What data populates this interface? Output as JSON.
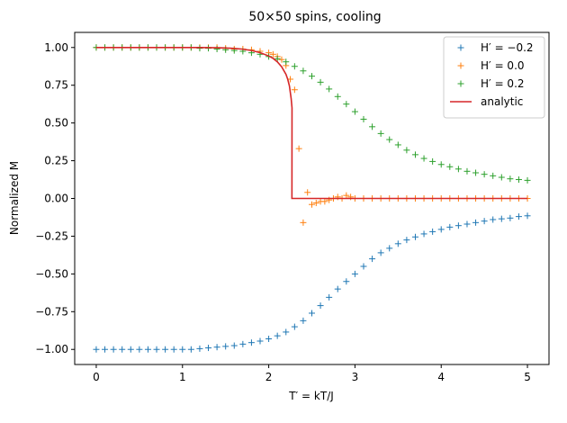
{
  "chart_data": {
    "type": "scatter",
    "title": "50×50 spins, cooling",
    "xlabel": "T′ = kT/J",
    "ylabel": "Normalized M",
    "xlim": [
      -0.25,
      5.25
    ],
    "ylim": [
      -1.1,
      1.1
    ],
    "xticks": [
      0,
      1,
      2,
      3,
      4,
      5
    ],
    "xtick_labels": [
      "0",
      "1",
      "2",
      "3",
      "4",
      "5"
    ],
    "yticks": [
      -1.0,
      -0.75,
      -0.5,
      -0.25,
      0.0,
      0.25,
      0.5,
      0.75,
      1.0
    ],
    "ytick_labels": [
      "−1.00",
      "−0.75",
      "−0.50",
      "−0.25",
      "0.00",
      "0.25",
      "0.50",
      "0.75",
      "1.00"
    ],
    "grid": false,
    "legend_position": "top-right",
    "series": [
      {
        "name": "H′ = −0.2",
        "color": "#1f77b4",
        "marker": "+",
        "x": [
          0.0,
          0.1,
          0.2,
          0.3,
          0.4,
          0.5,
          0.6,
          0.7,
          0.8,
          0.9,
          1.0,
          1.1,
          1.2,
          1.3,
          1.4,
          1.5,
          1.6,
          1.7,
          1.8,
          1.9,
          2.0,
          2.1,
          2.2,
          2.3,
          2.4,
          2.5,
          2.6,
          2.7,
          2.8,
          2.9,
          3.0,
          3.1,
          3.2,
          3.3,
          3.4,
          3.5,
          3.6,
          3.7,
          3.8,
          3.9,
          4.0,
          4.1,
          4.2,
          4.3,
          4.4,
          4.5,
          4.6,
          4.7,
          4.8,
          4.9,
          5.0
        ],
        "values": [
          -1.0,
          -1.0,
          -1.0,
          -1.0,
          -1.0,
          -1.0,
          -1.0,
          -1.0,
          -1.0,
          -1.0,
          -1.0,
          -1.0,
          -0.995,
          -0.99,
          -0.985,
          -0.98,
          -0.975,
          -0.965,
          -0.955,
          -0.945,
          -0.93,
          -0.91,
          -0.885,
          -0.85,
          -0.81,
          -0.76,
          -0.71,
          -0.655,
          -0.6,
          -0.55,
          -0.5,
          -0.45,
          -0.4,
          -0.36,
          -0.33,
          -0.3,
          -0.275,
          -0.255,
          -0.235,
          -0.22,
          -0.205,
          -0.19,
          -0.18,
          -0.17,
          -0.16,
          -0.15,
          -0.14,
          -0.135,
          -0.13,
          -0.12,
          -0.115
        ]
      },
      {
        "name": "H′ = 0.0",
        "color": "#ff7f0e",
        "marker": "+",
        "x": [
          0.0,
          0.1,
          0.2,
          0.3,
          0.4,
          0.5,
          0.6,
          0.7,
          0.8,
          0.9,
          1.0,
          1.1,
          1.2,
          1.3,
          1.4,
          1.5,
          1.6,
          1.7,
          1.8,
          1.9,
          2.0,
          2.05,
          2.1,
          2.15,
          2.2,
          2.25,
          2.3,
          2.35,
          2.4,
          2.45,
          2.5,
          2.55,
          2.6,
          2.65,
          2.7,
          2.75,
          2.8,
          2.85,
          2.9,
          2.95,
          3.0,
          3.1,
          3.2,
          3.3,
          3.4,
          3.5,
          3.6,
          3.7,
          3.8,
          3.9,
          4.0,
          4.1,
          4.2,
          4.3,
          4.4,
          4.5,
          4.6,
          4.7,
          4.8,
          4.9,
          5.0
        ],
        "values": [
          1.0,
          1.0,
          1.0,
          1.0,
          1.0,
          1.0,
          1.0,
          1.0,
          1.0,
          1.0,
          1.0,
          1.0,
          1.0,
          1.0,
          1.0,
          0.995,
          0.99,
          0.99,
          0.985,
          0.975,
          0.965,
          0.955,
          0.94,
          0.92,
          0.88,
          0.79,
          0.72,
          0.33,
          -0.16,
          0.04,
          -0.04,
          -0.03,
          -0.02,
          -0.02,
          -0.01,
          0.0,
          0.01,
          0.0,
          0.02,
          0.01,
          0.0,
          0.0,
          0.0,
          0.0,
          0.0,
          0.0,
          0.0,
          0.0,
          0.0,
          0.0,
          0.0,
          0.0,
          0.0,
          0.0,
          0.0,
          0.0,
          0.0,
          0.0,
          0.0,
          0.0,
          0.0
        ]
      },
      {
        "name": "H′ = 0.2",
        "color": "#2ca02c",
        "marker": "+",
        "x": [
          0.0,
          0.1,
          0.2,
          0.3,
          0.4,
          0.5,
          0.6,
          0.7,
          0.8,
          0.9,
          1.0,
          1.1,
          1.2,
          1.3,
          1.4,
          1.5,
          1.6,
          1.7,
          1.8,
          1.9,
          2.0,
          2.1,
          2.2,
          2.3,
          2.4,
          2.5,
          2.6,
          2.7,
          2.8,
          2.9,
          3.0,
          3.1,
          3.2,
          3.3,
          3.4,
          3.5,
          3.6,
          3.7,
          3.8,
          3.9,
          4.0,
          4.1,
          4.2,
          4.3,
          4.4,
          4.5,
          4.6,
          4.7,
          4.8,
          4.9,
          5.0
        ],
        "values": [
          1.0,
          1.0,
          1.0,
          1.0,
          1.0,
          1.0,
          1.0,
          1.0,
          1.0,
          1.0,
          1.0,
          1.0,
          0.995,
          0.995,
          0.99,
          0.985,
          0.98,
          0.975,
          0.965,
          0.955,
          0.94,
          0.925,
          0.905,
          0.875,
          0.845,
          0.81,
          0.77,
          0.725,
          0.675,
          0.625,
          0.575,
          0.525,
          0.475,
          0.43,
          0.39,
          0.355,
          0.32,
          0.29,
          0.265,
          0.245,
          0.225,
          0.21,
          0.195,
          0.18,
          0.17,
          0.16,
          0.15,
          0.14,
          0.13,
          0.125,
          0.12
        ]
      }
    ],
    "analytic": {
      "name": "analytic",
      "color": "#d62728",
      "type": "line",
      "x": [
        0.0,
        0.2,
        0.4,
        0.6,
        0.8,
        1.0,
        1.2,
        1.4,
        1.5,
        1.6,
        1.7,
        1.8,
        1.9,
        2.0,
        2.05,
        2.1,
        2.15,
        2.2,
        2.22,
        2.24,
        2.26,
        2.27,
        2.269,
        5.0
      ],
      "values": [
        1.0,
        1.0,
        1.0,
        1.0,
        1.0,
        1.0,
        0.9995,
        0.9985,
        0.997,
        0.994,
        0.989,
        0.98,
        0.966,
        0.944,
        0.928,
        0.905,
        0.872,
        0.822,
        0.79,
        0.745,
        0.662,
        0.6,
        0.0,
        0.0
      ]
    }
  }
}
